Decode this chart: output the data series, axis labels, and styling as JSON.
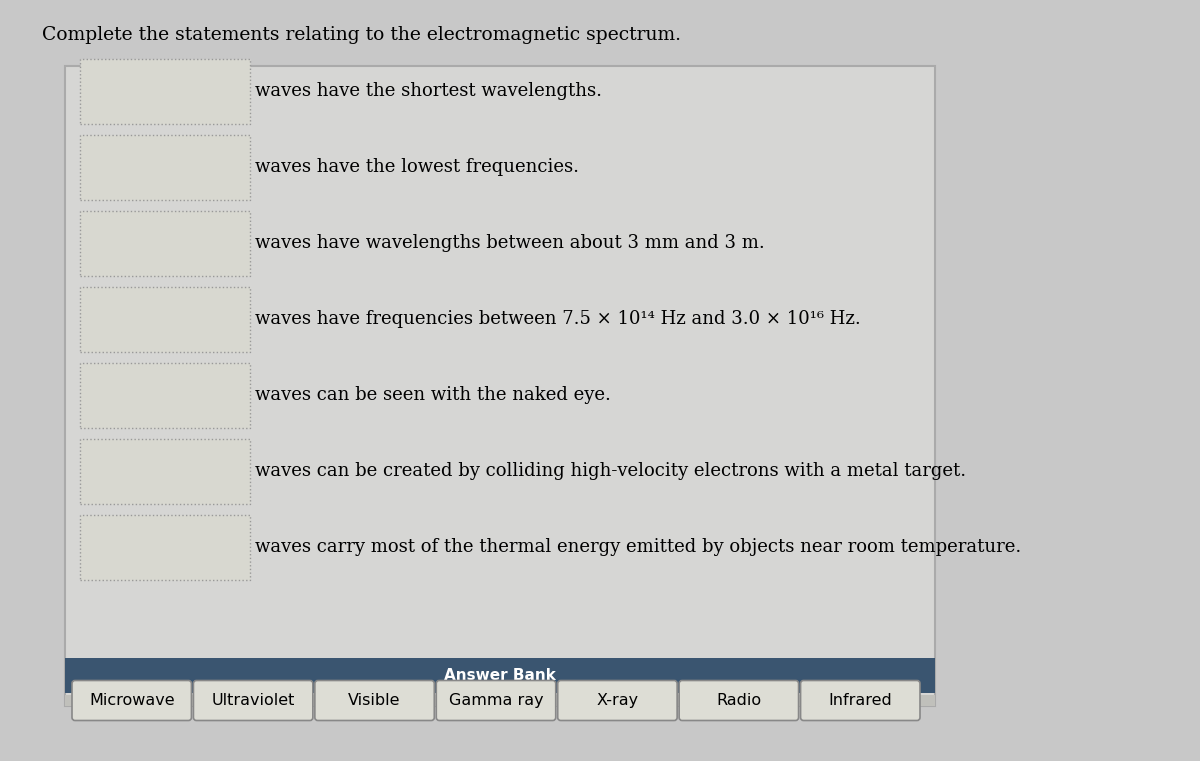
{
  "title": "Complete the statements relating to the electromagnetic spectrum.",
  "title_fontsize": 13.5,
  "outer_bg": "#c8c8c8",
  "inner_bg": "#d4d4d4",
  "statements": [
    "waves have the shortest wavelengths.",
    "waves have the lowest frequencies.",
    "waves have wavelengths between about 3 mm and 3 m.",
    "waves have frequencies between 7.5 × 10¹⁴ Hz and 3.0 × 10¹⁶ Hz.",
    "waves can be seen with the naked eye.",
    "waves can be created by colliding high-velocity electrons with a metal target.",
    "waves carry most of the thermal energy emitted by objects near room temperature."
  ],
  "statement_fontsize": 13,
  "box_facecolor": "#d8d8d0",
  "box_edgecolor": "#999999",
  "answer_bank_label": "Answer Bank",
  "answer_bank_bg": "#3a5570",
  "answer_bank_label_color": "#ffffff",
  "answer_bank_fontsize": 11,
  "answer_row_bg": "#c0c0bb",
  "answers": [
    "Microwave",
    "Ultraviolet",
    "Visible",
    "Gamma ray",
    "X-ray",
    "Radio",
    "Infrared"
  ],
  "answer_btn_bg": "#ddddd5",
  "answer_btn_border": "#888888",
  "answer_fontsize": 11.5
}
